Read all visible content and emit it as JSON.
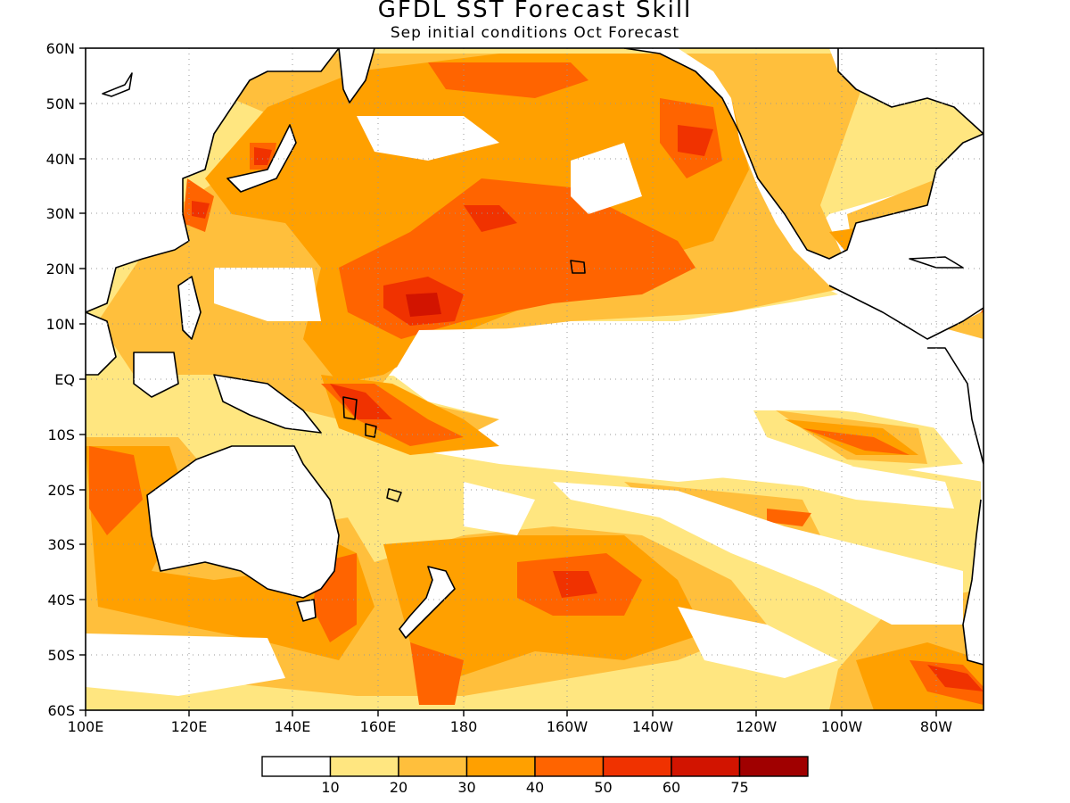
{
  "title": "GFDL SST Forecast Skill",
  "subtitle": "Sep initial conditions  Oct Forecast",
  "lon_labels": [
    "100E",
    "120E",
    "140E",
    "160E",
    "180",
    "160W",
    "140W",
    "120W",
    "100W",
    "80W"
  ],
  "lat_labels": [
    "60N",
    "50N",
    "40N",
    "30N",
    "20N",
    "10N",
    "EQ",
    "10S",
    "20S",
    "30S",
    "40S",
    "50S",
    "60S"
  ],
  "colorbar": {
    "labels": [
      "10",
      "20",
      "30",
      "40",
      "50",
      "60",
      "75"
    ],
    "colors": [
      "#ffffff",
      "#ffe680",
      "#ffbf3c",
      "#ffa000",
      "#ff6400",
      "#f03200",
      "#d21400",
      "#a00000"
    ]
  },
  "map": {
    "lon_range": [
      "100E",
      "70W"
    ],
    "lat_range": [
      "60S",
      "60N"
    ],
    "grid": true
  }
}
